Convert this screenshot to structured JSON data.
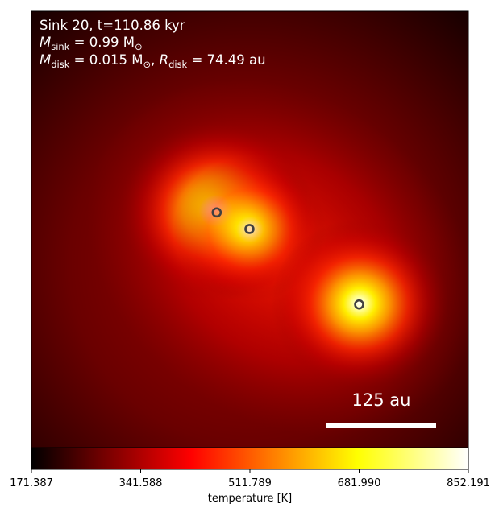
{
  "annotation": {
    "line1": "Sink 20, t=110.86 kyr",
    "line2_symbol": "M",
    "line2_sub": "sink",
    "line2_rest": " = 0.99 M",
    "line2_sun": "⊙",
    "line3_symbol": "M",
    "line3_sub": "disk",
    "line3_mid": " = 0.015 M",
    "line3_sun": "⊙",
    "line3_sep": ", ",
    "line3_symbol2": "R",
    "line3_sub2": "disk",
    "line3_rest": " = 74.49 au"
  },
  "scale_bar": {
    "label": "125 au",
    "length_au": 125
  },
  "colors": {
    "background_low": "#000000",
    "mid": "#ff0000",
    "high": "#ffff00",
    "max": "#ffffff",
    "sink_marker": "#404040",
    "annotation_text": "#ffffff"
  },
  "chart_data": {
    "type": "heatmap",
    "colormap": "hot",
    "colorbar": {
      "label": "temperature [K]",
      "ticks": [
        "171.387",
        "341.588",
        "511.789",
        "681.990",
        "852.191"
      ],
      "tick_values": [
        171.387,
        341.588,
        511.789,
        681.99,
        852.191
      ],
      "range": [
        171.387,
        852.191
      ],
      "orientation": "horizontal",
      "placement": "bottom"
    },
    "sinks": [
      {
        "x_frac": 0.424,
        "y_frac": 0.461
      },
      {
        "x_frac": 0.499,
        "y_frac": 0.499
      },
      {
        "x_frac": 0.75,
        "y_frac": 0.672
      }
    ]
  }
}
